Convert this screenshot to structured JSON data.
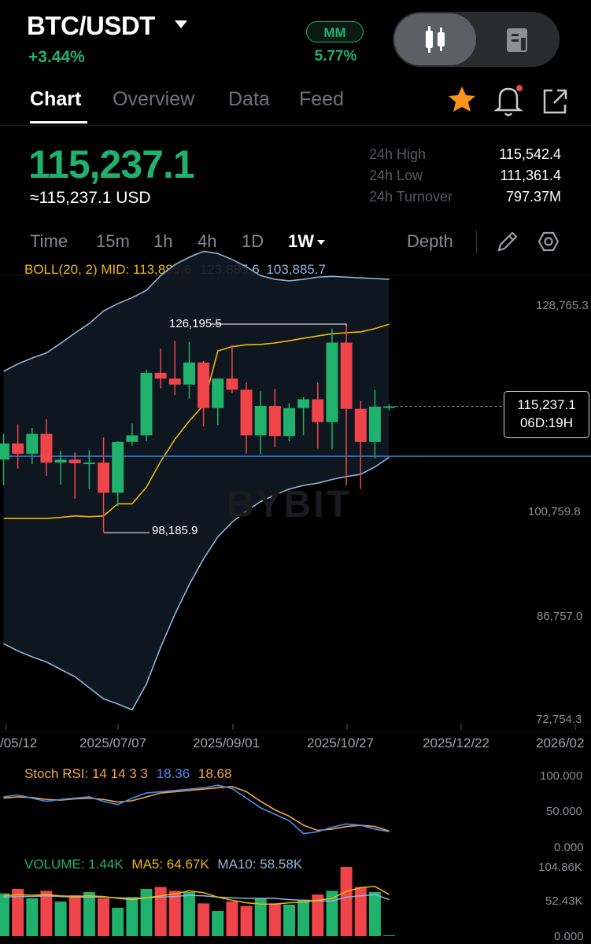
{
  "header": {
    "pair": "BTC/USDT",
    "change": "+3.44%",
    "mm_label": "MM",
    "mm_value": "5.77%"
  },
  "tabs": [
    {
      "label": "Chart",
      "active": true
    },
    {
      "label": "Overview",
      "active": false
    },
    {
      "label": "Data",
      "active": false
    },
    {
      "label": "Feed",
      "active": false
    }
  ],
  "price": {
    "last": "115,237.1",
    "usd": "≈115,237.1 USD"
  },
  "stats": {
    "high_label": "24h High",
    "high": "115,542.4",
    "low_label": "24h Low",
    "low": "111,361.4",
    "turnover_label": "24h Turnover",
    "turnover": "797.37M"
  },
  "timeframes": {
    "time": "Time",
    "m15": "15m",
    "h1": "1h",
    "h4": "4h",
    "d1": "1D",
    "w1": "1W",
    "depth": "Depth"
  },
  "boll": {
    "label": "BOLL(20, 2) MID: 113,885.6",
    "upper": "123,885.6",
    "lower": "103,885.7"
  },
  "colors": {
    "up": "#20b26c",
    "down": "#ef454a",
    "boll_mid": "#f0b90b",
    "boll_band": "#8fb4d8",
    "hline": "#2a8cf0",
    "star": "#f7931a"
  },
  "chart_data": {
    "type": "candlestick",
    "y_ticks": [
      "128,765.3",
      "100,759.8",
      "86,757.0",
      "72,754.3"
    ],
    "ylim": [
      72754.3,
      128765.3
    ],
    "x_ticks": [
      "/05/12",
      "2025/07/07",
      "2025/09/01",
      "2025/10/27",
      "2025/12/22",
      "2026/02"
    ],
    "annotations": {
      "high": "126,195.5",
      "low": "98,185.9"
    },
    "last_price": "115,237.1",
    "countdown": "06D:19H",
    "watermark": "BYBIT",
    "candles": [
      {
        "o": 108000,
        "h": 111500,
        "l": 104500,
        "c": 110200
      },
      {
        "o": 110200,
        "h": 112800,
        "l": 106800,
        "c": 108800
      },
      {
        "o": 108800,
        "h": 112300,
        "l": 107400,
        "c": 111500
      },
      {
        "o": 111500,
        "h": 113500,
        "l": 105800,
        "c": 107600
      },
      {
        "o": 107600,
        "h": 109200,
        "l": 104600,
        "c": 108000
      },
      {
        "o": 108000,
        "h": 109000,
        "l": 102700,
        "c": 107500
      },
      {
        "o": 107500,
        "h": 109300,
        "l": 104000,
        "c": 107600
      },
      {
        "o": 107600,
        "h": 111000,
        "l": 98185.9,
        "c": 103500
      },
      {
        "o": 103500,
        "h": 110500,
        "l": 101700,
        "c": 110400
      },
      {
        "o": 110400,
        "h": 112900,
        "l": 109900,
        "c": 111300
      },
      {
        "o": 111300,
        "h": 120200,
        "l": 110500,
        "c": 119800
      },
      {
        "o": 119800,
        "h": 123100,
        "l": 117700,
        "c": 119000
      },
      {
        "o": 119000,
        "h": 124100,
        "l": 116800,
        "c": 118200
      },
      {
        "o": 118200,
        "h": 124000,
        "l": 116300,
        "c": 121200
      },
      {
        "o": 121200,
        "h": 121400,
        "l": 112500,
        "c": 115000
      },
      {
        "o": 115000,
        "h": 119000,
        "l": 112700,
        "c": 119000
      },
      {
        "o": 119000,
        "h": 123600,
        "l": 117000,
        "c": 117500
      },
      {
        "o": 117500,
        "h": 118500,
        "l": 108800,
        "c": 111300
      },
      {
        "o": 111300,
        "h": 117300,
        "l": 108700,
        "c": 115300
      },
      {
        "o": 115300,
        "h": 117600,
        "l": 109700,
        "c": 111200
      },
      {
        "o": 111200,
        "h": 115700,
        "l": 110500,
        "c": 115000
      },
      {
        "o": 115000,
        "h": 116500,
        "l": 111300,
        "c": 116200
      },
      {
        "o": 116200,
        "h": 118500,
        "l": 109500,
        "c": 113100
      },
      {
        "o": 113100,
        "h": 125800,
        "l": 109400,
        "c": 123900
      },
      {
        "o": 123900,
        "h": 126195.5,
        "l": 104500,
        "c": 114900
      },
      {
        "o": 114900,
        "h": 116000,
        "l": 104000,
        "c": 110400
      },
      {
        "o": 110400,
        "h": 117500,
        "l": 108200,
        "c": 115200
      },
      {
        "o": 115200,
        "h": 115542.4,
        "l": 114700,
        "c": 115237.1
      }
    ]
  },
  "stoch": {
    "label": "Stoch RSI: 14 14 3 3",
    "k": "18.36",
    "d": "18.68",
    "ticks": [
      "100.000",
      "50.000",
      "0.000"
    ],
    "k_values": [
      72,
      75,
      70,
      65,
      68,
      70,
      72,
      65,
      60,
      70,
      78,
      80,
      82,
      84,
      86,
      90,
      85,
      70,
      55,
      45,
      35,
      15,
      18,
      25,
      30,
      28,
      22,
      18
    ],
    "d_values": [
      70,
      72,
      71,
      68,
      67,
      69,
      70,
      68,
      64,
      66,
      72,
      78,
      80,
      82,
      84,
      86,
      88,
      80,
      65,
      52,
      42,
      28,
      20,
      22,
      26,
      28,
      26,
      19
    ]
  },
  "volume": {
    "label": "VOLUME: 1.44K",
    "ma5": "MA5: 64.67K",
    "ma10": "MA10: 58.58K",
    "ticks": [
      "104.86K",
      "52.43K",
      "0.000"
    ],
    "bars": [
      68,
      75,
      60,
      72,
      55,
      65,
      70,
      60,
      45,
      62,
      75,
      78,
      72,
      70,
      52,
      40,
      55,
      48,
      60,
      52,
      50,
      58,
      66,
      72,
      110,
      78,
      70,
      1.44
    ],
    "ma5_values": [
      64,
      66,
      65,
      66,
      64,
      63,
      64,
      63,
      60,
      58,
      61,
      64,
      67,
      72,
      69,
      62,
      57,
      53,
      51,
      51,
      53,
      54,
      57,
      60,
      71,
      77,
      79,
      66
    ],
    "ma10_values": [
      62,
      63,
      63,
      64,
      63,
      62,
      62,
      62,
      61,
      60,
      61,
      62,
      63,
      65,
      64,
      62,
      61,
      60,
      60,
      60,
      58,
      57,
      56,
      56,
      62,
      64,
      66,
      58
    ]
  },
  "icons": {
    "caret": "caret-down-icon",
    "candles": "candlestick-icon",
    "doc": "document-icon",
    "star": "star-icon",
    "bell": "bell-icon",
    "share": "share-icon",
    "pencil": "pencil-icon",
    "settings": "hexagon-settings-icon"
  }
}
